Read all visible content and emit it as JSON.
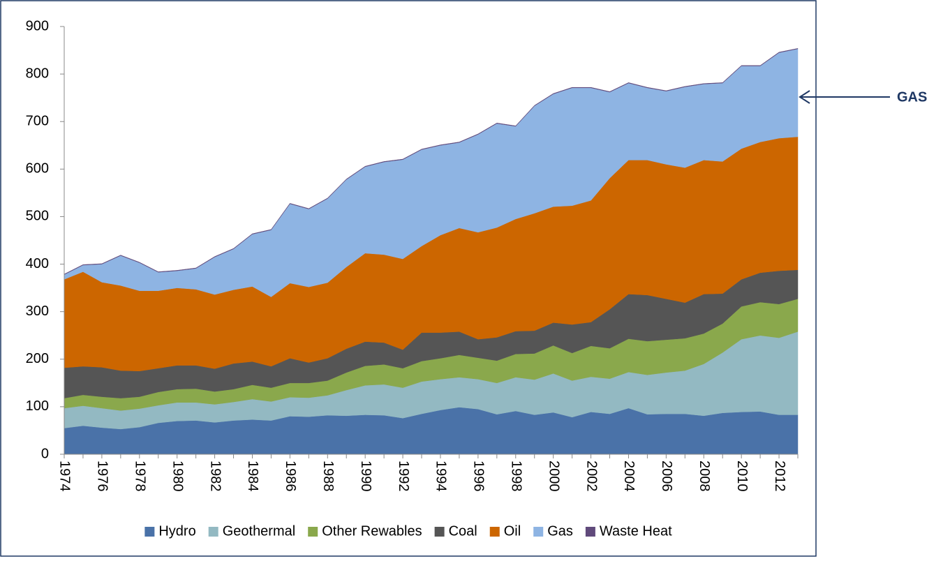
{
  "chart_data": {
    "type": "stacked_area",
    "annotation": "GAS",
    "categories": [
      "1974",
      null,
      "1976",
      null,
      "1978",
      null,
      "1980",
      null,
      "1982",
      null,
      "1984",
      null,
      "1986",
      null,
      "1988",
      null,
      "1990",
      null,
      "1992",
      null,
      "1994",
      null,
      "1996",
      null,
      "1998",
      null,
      "2000",
      null,
      "2002",
      null,
      "2004",
      null,
      "2006",
      null,
      "2008",
      null,
      "2010",
      null,
      "2012",
      null
    ],
    "series": [
      {
        "name": "Hydro",
        "color": "#4a72a8",
        "values": [
          55,
          60,
          56,
          53,
          57,
          66,
          70,
          71,
          67,
          71,
          73,
          71,
          80,
          79,
          82,
          81,
          83,
          82,
          76,
          85,
          93,
          99,
          95,
          84,
          91,
          83,
          88,
          78,
          89,
          85,
          97,
          84,
          85,
          85,
          81,
          87,
          89,
          90,
          83,
          83
        ]
      },
      {
        "name": "Geothermal",
        "color": "#93b9c2",
        "values": [
          42,
          42,
          41,
          39,
          39,
          37,
          39,
          38,
          38,
          39,
          43,
          40,
          40,
          40,
          42,
          54,
          62,
          65,
          64,
          68,
          65,
          63,
          63,
          66,
          71,
          74,
          82,
          77,
          74,
          74,
          76,
          83,
          87,
          91,
          109,
          127,
          153,
          160,
          162,
          175
        ]
      },
      {
        "name": "Other Rewables",
        "color": "#8aa84c",
        "values": [
          21,
          23,
          24,
          26,
          25,
          28,
          28,
          29,
          27,
          27,
          30,
          29,
          30,
          31,
          31,
          37,
          41,
          42,
          41,
          43,
          44,
          47,
          45,
          47,
          49,
          55,
          59,
          58,
          65,
          64,
          70,
          71,
          69,
          68,
          64,
          61,
          69,
          70,
          71,
          69
        ]
      },
      {
        "name": "Coal",
        "color": "#555555",
        "values": [
          64,
          60,
          62,
          58,
          54,
          50,
          50,
          49,
          48,
          54,
          49,
          45,
          52,
          43,
          47,
          50,
          51,
          46,
          39,
          60,
          54,
          49,
          39,
          49,
          48,
          48,
          48,
          60,
          50,
          82,
          94,
          97,
          86,
          75,
          83,
          63,
          57,
          62,
          70,
          61
        ]
      },
      {
        "name": "Oil",
        "color": "#cc6600",
        "values": [
          186,
          199,
          179,
          179,
          169,
          163,
          163,
          160,
          156,
          155,
          158,
          146,
          158,
          159,
          159,
          172,
          186,
          185,
          191,
          182,
          205,
          218,
          225,
          231,
          236,
          247,
          244,
          250,
          256,
          276,
          282,
          284,
          283,
          284,
          282,
          278,
          275,
          275,
          279,
          280
        ]
      },
      {
        "name": "Gas",
        "color": "#8eb4e3",
        "values": [
          10,
          14,
          38,
          63,
          59,
          39,
          36,
          44,
          79,
          86,
          110,
          141,
          167,
          164,
          177,
          184,
          182,
          195,
          209,
          203,
          189,
          180,
          206,
          219,
          195,
          226,
          237,
          248,
          237,
          181,
          162,
          152,
          154,
          170,
          160,
          165,
          174,
          160,
          180,
          185
        ]
      },
      {
        "name": "Waste Heat",
        "color": "#604a7b",
        "values": [
          1,
          1,
          1,
          1,
          1,
          1,
          1,
          1,
          1,
          1,
          1,
          1,
          1,
          1,
          1,
          1,
          1,
          1,
          1,
          1,
          1,
          1,
          1,
          1,
          1,
          1,
          1,
          1,
          1,
          1,
          1,
          1,
          1,
          1,
          1,
          1,
          1,
          1,
          1,
          1
        ]
      }
    ],
    "ylim": [
      0,
      900
    ],
    "yticks": [
      0,
      100,
      200,
      300,
      400,
      500,
      600,
      700,
      800,
      900
    ],
    "grid": false
  }
}
